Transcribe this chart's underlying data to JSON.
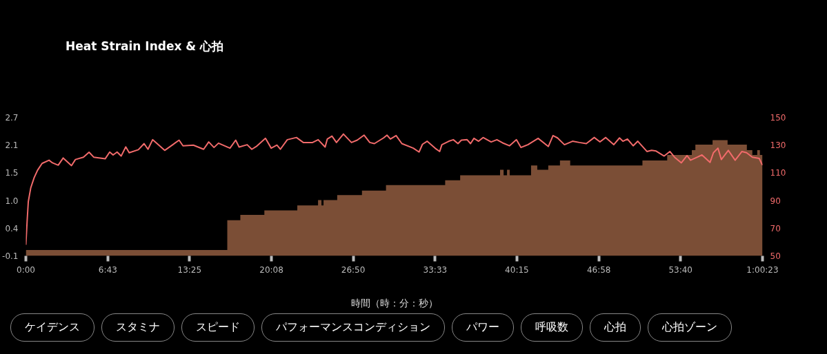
{
  "chart_data": {
    "type": "area",
    "title": "Heat Strain Index & 心拍",
    "xlabel": "時間（時：分：秒）",
    "xlim": [
      0,
      60.3833
    ],
    "xticks": [
      {
        "value": 0,
        "label": "0:00"
      },
      {
        "value": 6.7167,
        "label": "6:43"
      },
      {
        "value": 13.4167,
        "label": "13:25"
      },
      {
        "value": 20.1333,
        "label": "20:08"
      },
      {
        "value": 26.8333,
        "label": "26:50"
      },
      {
        "value": 33.55,
        "label": "33:33"
      },
      {
        "value": 40.25,
        "label": "40:15"
      },
      {
        "value": 46.9667,
        "label": "46:58"
      },
      {
        "value": 53.6667,
        "label": "53:40"
      },
      {
        "value": 60.3833,
        "label": "1:00:23"
      }
    ],
    "ylim": [
      -0.14,
      2.66
    ],
    "yticks": [
      {
        "value": -0.14,
        "label": "-0.1"
      },
      {
        "value": 0.42,
        "label": "0.4"
      },
      {
        "value": 0.98,
        "label": "1.0"
      },
      {
        "value": 1.54,
        "label": "1.5"
      },
      2.1,
      {
        "value": 2.66,
        "label": "2.7"
      }
    ],
    "y2lim": [
      50,
      150
    ],
    "y2ticks": [
      50,
      70,
      90,
      110,
      130,
      150
    ],
    "series": [
      {
        "color": "#7b4e36",
        "x": [
          0,
          0,
          16.51,
          16.51,
          17.58,
          17.58,
          19.55,
          19.55,
          22.25,
          22.25,
          23.95,
          23.95,
          24.23,
          24.23,
          24.4,
          24.4,
          25.52,
          25.52,
          27.55,
          27.55,
          29.52,
          29.52,
          34.37,
          34.37,
          35.6,
          35.6,
          38.87,
          38.87,
          39.16,
          39.16,
          39.44,
          39.44,
          39.66,
          39.66,
          41.41,
          41.41,
          41.92,
          41.92,
          42.82,
          42.82,
          43.78,
          43.78,
          44.62,
          44.62,
          50.54,
          50.54,
          52.57,
          52.57,
          54.59,
          54.59,
          54.88,
          54.88,
          56.29,
          56.29,
          57.52,
          57.52,
          59.1,
          59.1,
          59.55,
          59.55,
          59.95,
          59.95,
          60.17,
          60.17,
          60.38,
          60.38
        ],
        "values": [
          -0.14,
          -0.02,
          -0.02,
          0.58,
          0.58,
          0.69,
          0.69,
          0.78,
          0.78,
          0.88,
          0.88,
          0.99,
          0.99,
          0.88,
          0.88,
          0.99,
          0.99,
          1.09,
          1.09,
          1.18,
          1.18,
          1.29,
          1.29,
          1.39,
          1.39,
          1.49,
          1.49,
          1.6,
          1.6,
          1.49,
          1.49,
          1.6,
          1.6,
          1.49,
          1.49,
          1.69,
          1.69,
          1.6,
          1.6,
          1.69,
          1.69,
          1.79,
          1.79,
          1.69,
          1.69,
          1.79,
          1.79,
          1.9,
          1.9,
          2.0,
          2.0,
          2.11,
          2.11,
          2.2,
          2.2,
          2.11,
          2.11,
          2.0,
          2.0,
          1.9,
          1.9,
          2.0,
          2.0,
          1.9,
          1.9,
          -0.14
        ]
      },
      {
        "type": "line",
        "axis": "y2",
        "color": "#f26b6b",
        "x": [
          0,
          0.11,
          0.2,
          0.4,
          0.68,
          0.96,
          1.33,
          1.9,
          2.18,
          2.65,
          3.06,
          3.74,
          4.06,
          4.72,
          5.18,
          5.56,
          6.5,
          6.87,
          7.15,
          7.48,
          7.81,
          8.19,
          8.47,
          9.22,
          9.69,
          10.01,
          10.39,
          11.38,
          12.04,
          12.56,
          12.88,
          13.73,
          14.57,
          14.99,
          15.42,
          15.79,
          16.73,
          17.2,
          17.48,
          18.14,
          18.52,
          18.89,
          19.64,
          20.11,
          20.58,
          20.86,
          21.43,
          22.18,
          22.74,
          23.5,
          23.96,
          24.53,
          24.71,
          25.09,
          25.46,
          26.03,
          26.69,
          27.16,
          27.72,
          28.19,
          28.57,
          29.32,
          29.6,
          29.88,
          30.35,
          30.82,
          31.76,
          32.23,
          32.51,
          32.89,
          33.54,
          33.92,
          34.1,
          34.67,
          35.04,
          35.42,
          35.7,
          36.17,
          36.45,
          36.73,
          37.11,
          37.48,
          38.14,
          38.61,
          39.08,
          39.64,
          40.21,
          40.58,
          41.15,
          41.99,
          42.83,
          43.21,
          43.58,
          44.15,
          44.81,
          45.37,
          45.94,
          46.59,
          47.06,
          47.53,
          48.19,
          48.66,
          48.94,
          49.31,
          49.78,
          50.16,
          50.91,
          51.29,
          51.66,
          52.32,
          52.79,
          53.17,
          53.73,
          54.2,
          54.48,
          55.04,
          55.42,
          56.08,
          56.36,
          56.73,
          57.01,
          57.58,
          58.14,
          58.7,
          59.08,
          59.55,
          60.11,
          60.38
        ],
        "values": [
          58.0,
          76.1,
          89.2,
          99.1,
          106.5,
          111.9,
          116.8,
          119.1,
          117.2,
          115.5,
          120.7,
          115.2,
          119.6,
          121.3,
          124.9,
          121.3,
          120.1,
          125.0,
          122.9,
          125.0,
          122.1,
          128.7,
          124.5,
          126.7,
          131.1,
          127.0,
          133.9,
          126.2,
          130.3,
          133.6,
          129.5,
          130.0,
          127.0,
          132.3,
          128.3,
          131.4,
          127.8,
          133.6,
          128.6,
          130.3,
          127.0,
          129.0,
          134.9,
          127.8,
          130.0,
          127.0,
          133.9,
          135.5,
          131.9,
          131.9,
          133.9,
          128.6,
          134.4,
          136.5,
          131.9,
          138.0,
          131.9,
          133.6,
          137.2,
          131.9,
          131.1,
          135.2,
          137.2,
          134.4,
          136.9,
          131.1,
          127.8,
          125.0,
          130.6,
          132.8,
          127.8,
          125.4,
          130.3,
          132.8,
          133.9,
          131.1,
          133.6,
          133.9,
          131.1,
          134.9,
          132.8,
          135.5,
          132.3,
          133.9,
          131.6,
          129.5,
          133.9,
          128.3,
          130.3,
          134.9,
          129.0,
          136.9,
          135.2,
          130.3,
          132.8,
          131.9,
          131.1,
          135.5,
          132.3,
          135.5,
          130.3,
          135.2,
          132.8,
          134.4,
          129.5,
          132.8,
          125.4,
          126.2,
          125.7,
          122.1,
          125.4,
          121.3,
          117.2,
          122.4,
          119.1,
          121.3,
          122.9,
          117.5,
          124.5,
          127.8,
          119.6,
          126.2,
          119.1,
          125.4,
          124.5,
          121.3,
          120.4,
          115.5
        ]
      }
    ],
    "annotations": [
      "ケイデンス",
      "スタミナ",
      "スピード",
      "パフォーマンスコンディション",
      "パワー",
      "呼吸数",
      "心拍",
      "心拍ゾーン"
    ]
  }
}
